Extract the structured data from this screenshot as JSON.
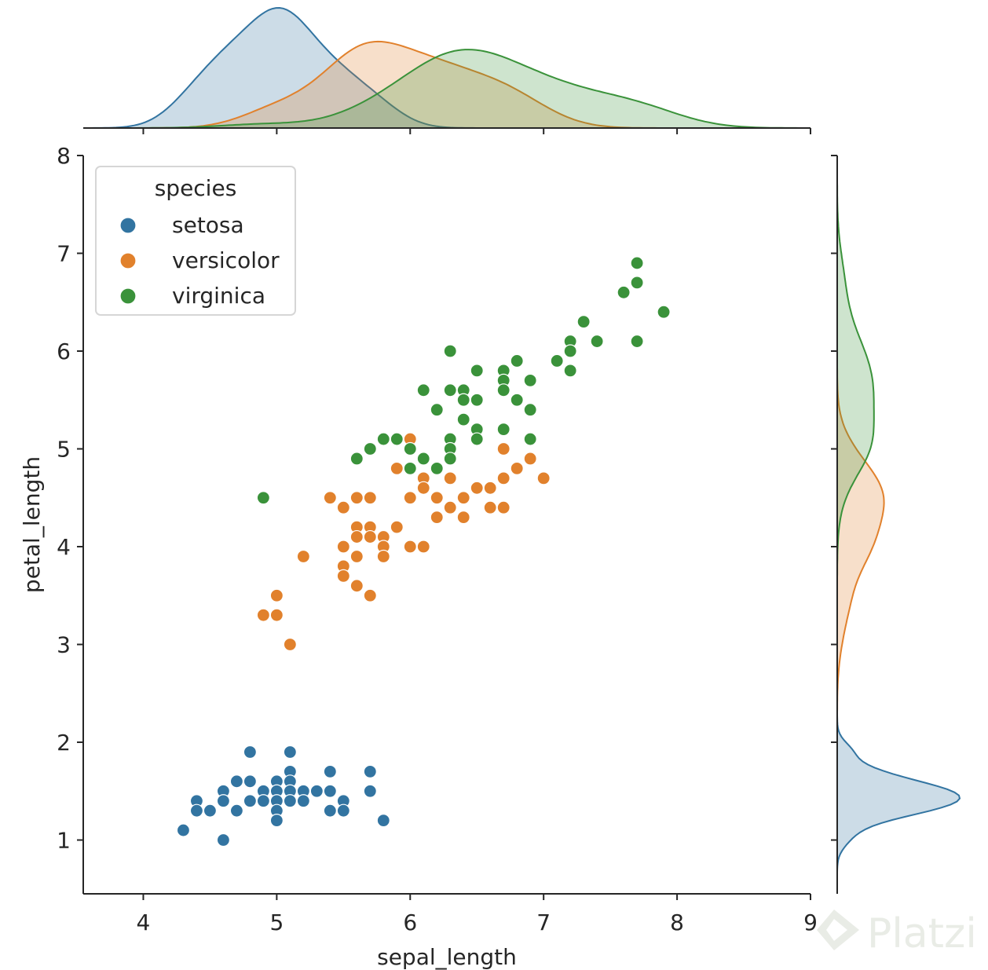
{
  "chart_data": {
    "type": "scatter",
    "xlabel": "sepal_length",
    "ylabel": "petal_length",
    "xlim": [
      3.55,
      9.0
    ],
    "ylim": [
      0.45,
      8.0
    ],
    "xticks": [
      "4",
      "5",
      "6",
      "7",
      "8",
      "9"
    ],
    "yticks": [
      "1",
      "2",
      "3",
      "4",
      "5",
      "6",
      "7",
      "8"
    ],
    "grid": false,
    "legend": {
      "title": "species",
      "placement": "top-left"
    },
    "marginals": {
      "top": "kde of sepal_length by species",
      "right": "kde of petal_length by species"
    },
    "series": [
      {
        "name": "setosa",
        "color": "#3274a1",
        "points": [
          [
            4.3,
            1.1
          ],
          [
            4.4,
            1.4
          ],
          [
            4.4,
            1.3
          ],
          [
            4.5,
            1.3
          ],
          [
            4.6,
            1.0
          ],
          [
            4.6,
            1.5
          ],
          [
            4.6,
            1.4
          ],
          [
            4.7,
            1.6
          ],
          [
            4.7,
            1.3
          ],
          [
            4.8,
            1.9
          ],
          [
            4.8,
            1.6
          ],
          [
            4.8,
            1.4
          ],
          [
            4.9,
            1.5
          ],
          [
            4.9,
            1.4
          ],
          [
            5.0,
            1.6
          ],
          [
            5.0,
            1.5
          ],
          [
            5.0,
            1.4
          ],
          [
            5.0,
            1.3
          ],
          [
            5.0,
            1.2
          ],
          [
            5.1,
            1.9
          ],
          [
            5.1,
            1.7
          ],
          [
            5.1,
            1.6
          ],
          [
            5.1,
            1.5
          ],
          [
            5.1,
            1.4
          ],
          [
            5.2,
            1.5
          ],
          [
            5.2,
            1.4
          ],
          [
            5.3,
            1.5
          ],
          [
            5.4,
            1.7
          ],
          [
            5.4,
            1.5
          ],
          [
            5.4,
            1.3
          ],
          [
            5.5,
            1.4
          ],
          [
            5.5,
            1.3
          ],
          [
            5.7,
            1.7
          ],
          [
            5.7,
            1.5
          ],
          [
            5.8,
            1.2
          ]
        ]
      },
      {
        "name": "versicolor",
        "color": "#e1812c",
        "points": [
          [
            4.9,
            3.3
          ],
          [
            5.0,
            3.3
          ],
          [
            5.0,
            3.5
          ],
          [
            5.1,
            3.0
          ],
          [
            5.2,
            3.9
          ],
          [
            5.4,
            4.5
          ],
          [
            5.5,
            4.4
          ],
          [
            5.5,
            4.0
          ],
          [
            5.5,
            3.8
          ],
          [
            5.5,
            3.7
          ],
          [
            5.6,
            4.5
          ],
          [
            5.6,
            4.2
          ],
          [
            5.6,
            4.1
          ],
          [
            5.6,
            3.9
          ],
          [
            5.6,
            3.6
          ],
          [
            5.7,
            4.5
          ],
          [
            5.7,
            4.2
          ],
          [
            5.7,
            4.1
          ],
          [
            5.7,
            3.5
          ],
          [
            5.8,
            4.1
          ],
          [
            5.8,
            4.0
          ],
          [
            5.8,
            3.9
          ],
          [
            5.9,
            4.8
          ],
          [
            5.9,
            4.2
          ],
          [
            6.0,
            5.1
          ],
          [
            6.0,
            4.5
          ],
          [
            6.0,
            4.0
          ],
          [
            6.1,
            4.7
          ],
          [
            6.1,
            4.6
          ],
          [
            6.1,
            4.0
          ],
          [
            6.2,
            4.5
          ],
          [
            6.2,
            4.3
          ],
          [
            6.3,
            4.9
          ],
          [
            6.3,
            4.7
          ],
          [
            6.3,
            4.4
          ],
          [
            6.4,
            4.5
          ],
          [
            6.4,
            4.3
          ],
          [
            6.5,
            4.6
          ],
          [
            6.6,
            4.6
          ],
          [
            6.6,
            4.4
          ],
          [
            6.7,
            5.0
          ],
          [
            6.7,
            4.7
          ],
          [
            6.7,
            4.4
          ],
          [
            6.8,
            4.8
          ],
          [
            6.9,
            4.9
          ],
          [
            7.0,
            4.7
          ]
        ]
      },
      {
        "name": "virginica",
        "color": "#3a923a",
        "points": [
          [
            4.9,
            4.5
          ],
          [
            5.6,
            4.9
          ],
          [
            5.7,
            5.0
          ],
          [
            5.8,
            5.1
          ],
          [
            5.9,
            5.1
          ],
          [
            6.0,
            5.0
          ],
          [
            6.0,
            4.8
          ],
          [
            6.1,
            5.6
          ],
          [
            6.1,
            4.9
          ],
          [
            6.2,
            5.4
          ],
          [
            6.2,
            4.8
          ],
          [
            6.3,
            6.0
          ],
          [
            6.3,
            5.6
          ],
          [
            6.3,
            5.1
          ],
          [
            6.3,
            5.0
          ],
          [
            6.3,
            4.9
          ],
          [
            6.4,
            5.6
          ],
          [
            6.4,
            5.5
          ],
          [
            6.4,
            5.3
          ],
          [
            6.5,
            5.8
          ],
          [
            6.5,
            5.5
          ],
          [
            6.5,
            5.2
          ],
          [
            6.5,
            5.1
          ],
          [
            6.7,
            5.8
          ],
          [
            6.7,
            5.7
          ],
          [
            6.7,
            5.6
          ],
          [
            6.7,
            5.2
          ],
          [
            6.8,
            5.9
          ],
          [
            6.8,
            5.5
          ],
          [
            6.9,
            5.7
          ],
          [
            6.9,
            5.4
          ],
          [
            6.9,
            5.1
          ],
          [
            7.1,
            5.9
          ],
          [
            7.2,
            6.1
          ],
          [
            7.2,
            6.0
          ],
          [
            7.2,
            5.8
          ],
          [
            7.3,
            6.3
          ],
          [
            7.4,
            6.1
          ],
          [
            7.6,
            6.6
          ],
          [
            7.7,
            6.9
          ],
          [
            7.7,
            6.7
          ],
          [
            7.7,
            6.1
          ],
          [
            7.9,
            6.4
          ]
        ]
      }
    ]
  },
  "watermark": {
    "text": "Platzi"
  }
}
